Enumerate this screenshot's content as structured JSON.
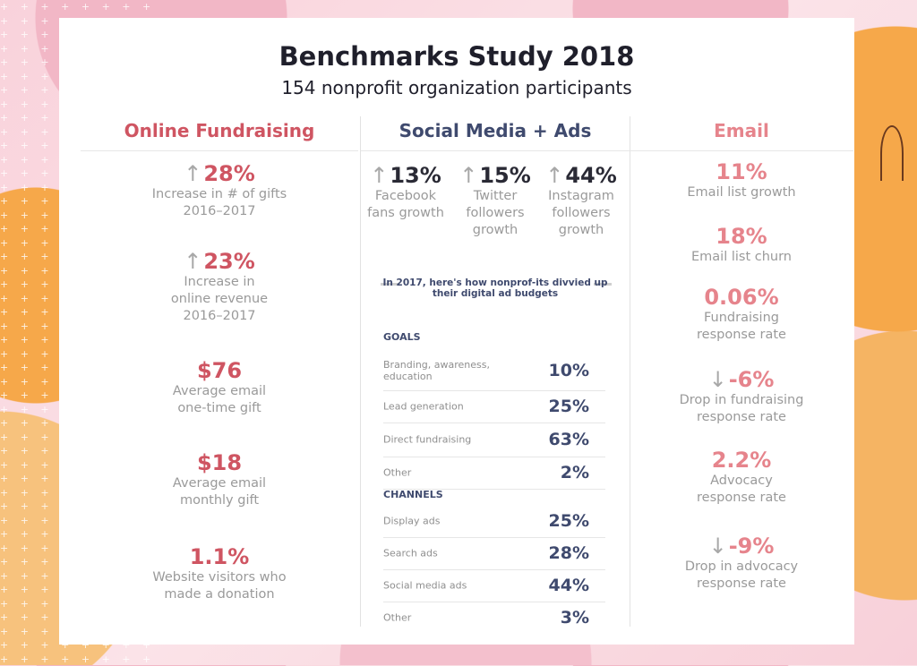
{
  "title": "Benchmarks Study 2018",
  "subtitle": "154 nonprofit organization participants",
  "columns": {
    "fundraising": {
      "heading": "Online Fundraising",
      "stats": [
        {
          "arrow": "↑",
          "value": "28%",
          "lines": [
            "Increase in # of gifts",
            "2016–2017"
          ]
        },
        {
          "arrow": "↑",
          "value": "23%",
          "lines": [
            "Increase in",
            "online revenue",
            "2016–2017"
          ]
        },
        {
          "arrow": "",
          "value": "$76",
          "lines": [
            "Average email",
            "one-time gift"
          ]
        },
        {
          "arrow": "",
          "value": "$18",
          "lines": [
            "Average email",
            "monthly gift"
          ]
        },
        {
          "arrow": "",
          "value": "1.1%",
          "lines": [
            "Website visitors who",
            "made a donation"
          ]
        }
      ]
    },
    "social": {
      "heading": "Social Media + Ads",
      "stats": [
        {
          "arrow": "↑",
          "value": "13%",
          "lines": [
            "Facebook",
            "fans growth"
          ]
        },
        {
          "arrow": "↑",
          "value": "15%",
          "lines": [
            "Twitter",
            "followers",
            "growth"
          ]
        },
        {
          "arrow": "↑",
          "value": "44%",
          "lines": [
            "Instagram",
            "followers",
            "growth"
          ]
        }
      ],
      "note": "In 2017, here's how nonprof-its divvied up their digital ad budgets",
      "goals_label": "GOALS",
      "goals": [
        {
          "label": "Branding, awareness, education",
          "value": "10%"
        },
        {
          "label": "Lead generation",
          "value": "25%"
        },
        {
          "label": "Direct fundraising",
          "value": "63%"
        },
        {
          "label": "Other",
          "value": "2%"
        }
      ],
      "channels_label": "CHANNELS",
      "channels": [
        {
          "label": "Display ads",
          "value": "25%"
        },
        {
          "label": "Search ads",
          "value": "28%"
        },
        {
          "label": "Social media ads",
          "value": "44%"
        },
        {
          "label": "Other",
          "value": "3%"
        }
      ]
    },
    "email": {
      "heading": "Email",
      "stats": [
        {
          "arrow": "",
          "value": "11%",
          "lines": [
            "Email list growth"
          ]
        },
        {
          "arrow": "",
          "value": "18%",
          "lines": [
            "Email list churn"
          ]
        },
        {
          "arrow": "",
          "value": "0.06%",
          "lines": [
            "Fundraising",
            "response rate"
          ]
        },
        {
          "arrow": "↓",
          "value": "-6%",
          "lines": [
            "Drop in fundraising",
            "response rate"
          ]
        },
        {
          "arrow": "",
          "value": "2.2%",
          "lines": [
            "Advocacy",
            "response rate"
          ]
        },
        {
          "arrow": "↓",
          "value": "-9%",
          "lines": [
            "Drop in advocacy",
            "response rate"
          ]
        }
      ]
    }
  }
}
